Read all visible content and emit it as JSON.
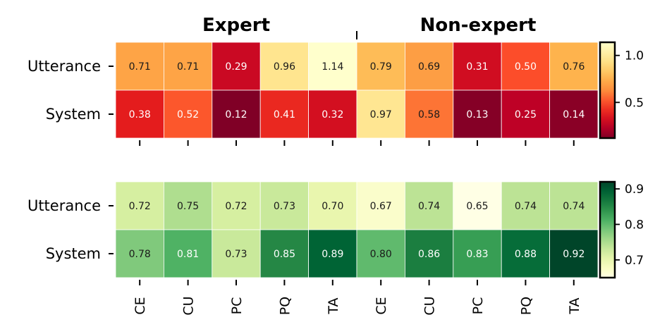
{
  "chart_data": [
    {
      "type": "heatmap",
      "groups": [
        "Expert",
        "Non-expert"
      ],
      "rows": [
        "Utterance",
        "System"
      ],
      "columns": [
        "CE",
        "CU",
        "PC",
        "PQ",
        "TA",
        "CE",
        "CU",
        "PC",
        "PQ",
        "TA"
      ],
      "values": [
        [
          0.71,
          0.71,
          0.29,
          0.96,
          1.14,
          0.79,
          0.69,
          0.31,
          0.5,
          0.76
        ],
        [
          0.38,
          0.52,
          0.12,
          0.41,
          0.32,
          0.97,
          0.58,
          0.13,
          0.25,
          0.14
        ]
      ],
      "value_labels": [
        [
          "0.71",
          "0.71",
          "0.29",
          "0.96",
          "1.14",
          "0.79",
          "0.69",
          "0.31",
          "0.50",
          "0.76"
        ],
        [
          "0.38",
          "0.52",
          "0.12",
          "0.41",
          "0.32",
          "0.97",
          "0.58",
          "0.13",
          "0.25",
          "0.14"
        ]
      ],
      "colormap": "YlOrRd_r",
      "vmin": 0.12,
      "vmax": 1.14,
      "colorbar_ticks": [
        1.0,
        0.5
      ],
      "colorbar_tick_labels": [
        "1.0",
        "0.5"
      ],
      "show_column_labels": false
    },
    {
      "type": "heatmap",
      "rows": [
        "Utterance",
        "System"
      ],
      "columns": [
        "CE",
        "CU",
        "PC",
        "PQ",
        "TA",
        "CE",
        "CU",
        "PC",
        "PQ",
        "TA"
      ],
      "values": [
        [
          0.72,
          0.75,
          0.72,
          0.73,
          0.7,
          0.67,
          0.74,
          0.65,
          0.74,
          0.74
        ],
        [
          0.78,
          0.81,
          0.73,
          0.85,
          0.89,
          0.8,
          0.86,
          0.83,
          0.88,
          0.92
        ]
      ],
      "value_labels": [
        [
          "0.72",
          "0.75",
          "0.72",
          "0.73",
          "0.70",
          "0.67",
          "0.74",
          "0.65",
          "0.74",
          "0.74"
        ],
        [
          "0.78",
          "0.81",
          "0.73",
          "0.85",
          "0.89",
          "0.80",
          "0.86",
          "0.83",
          "0.88",
          "0.92"
        ]
      ],
      "colormap": "YlGn",
      "vmin": 0.65,
      "vmax": 0.92,
      "colorbar_ticks": [
        0.9,
        0.8,
        0.7
      ],
      "colorbar_tick_labels": [
        "0.9",
        "0.8",
        "0.7"
      ],
      "show_column_labels": true
    }
  ]
}
